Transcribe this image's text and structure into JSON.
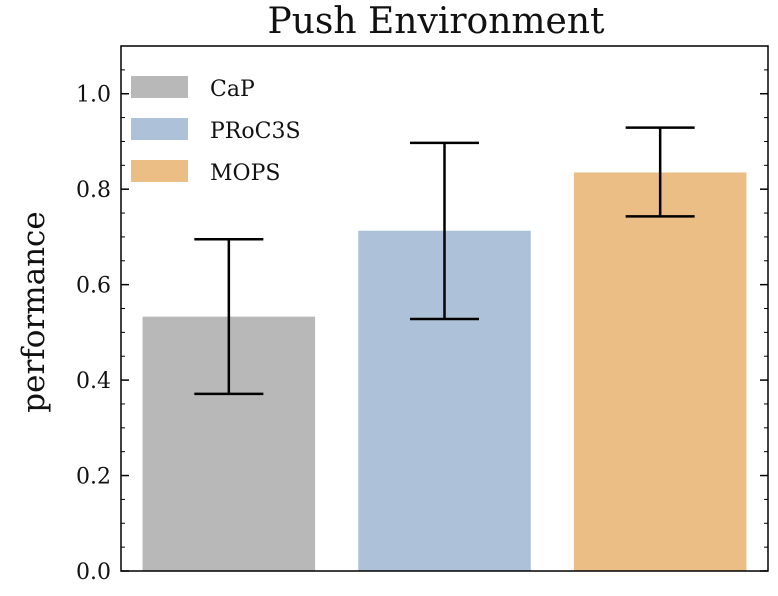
{
  "chart_data": {
    "type": "bar",
    "title": "Push Environment",
    "xlabel": "",
    "ylabel": "performance",
    "ylim": [
      0.0,
      1.1
    ],
    "yticks": [
      0.0,
      0.2,
      0.4,
      0.6,
      0.8,
      1.0
    ],
    "ytick_labels": [
      "0.0",
      "0.2",
      "0.4",
      "0.6",
      "0.8",
      "1.0"
    ],
    "grid": false,
    "legend_position": "top-left",
    "categories": [
      "CaP",
      "PRoC3S",
      "MOPS"
    ],
    "values": [
      0.533,
      0.713,
      0.835
    ],
    "error_low": [
      0.371,
      0.528,
      0.743
    ],
    "error_high": [
      0.695,
      0.897,
      0.929
    ],
    "colors": [
      "#b8b8b8",
      "#adc2d8",
      "#eabe84"
    ],
    "legend": [
      {
        "label": "CaP",
        "color": "#b8b8b8"
      },
      {
        "label": "PRoC3S",
        "color": "#adc2d8"
      },
      {
        "label": "MOPS",
        "color": "#eabe84"
      }
    ]
  }
}
